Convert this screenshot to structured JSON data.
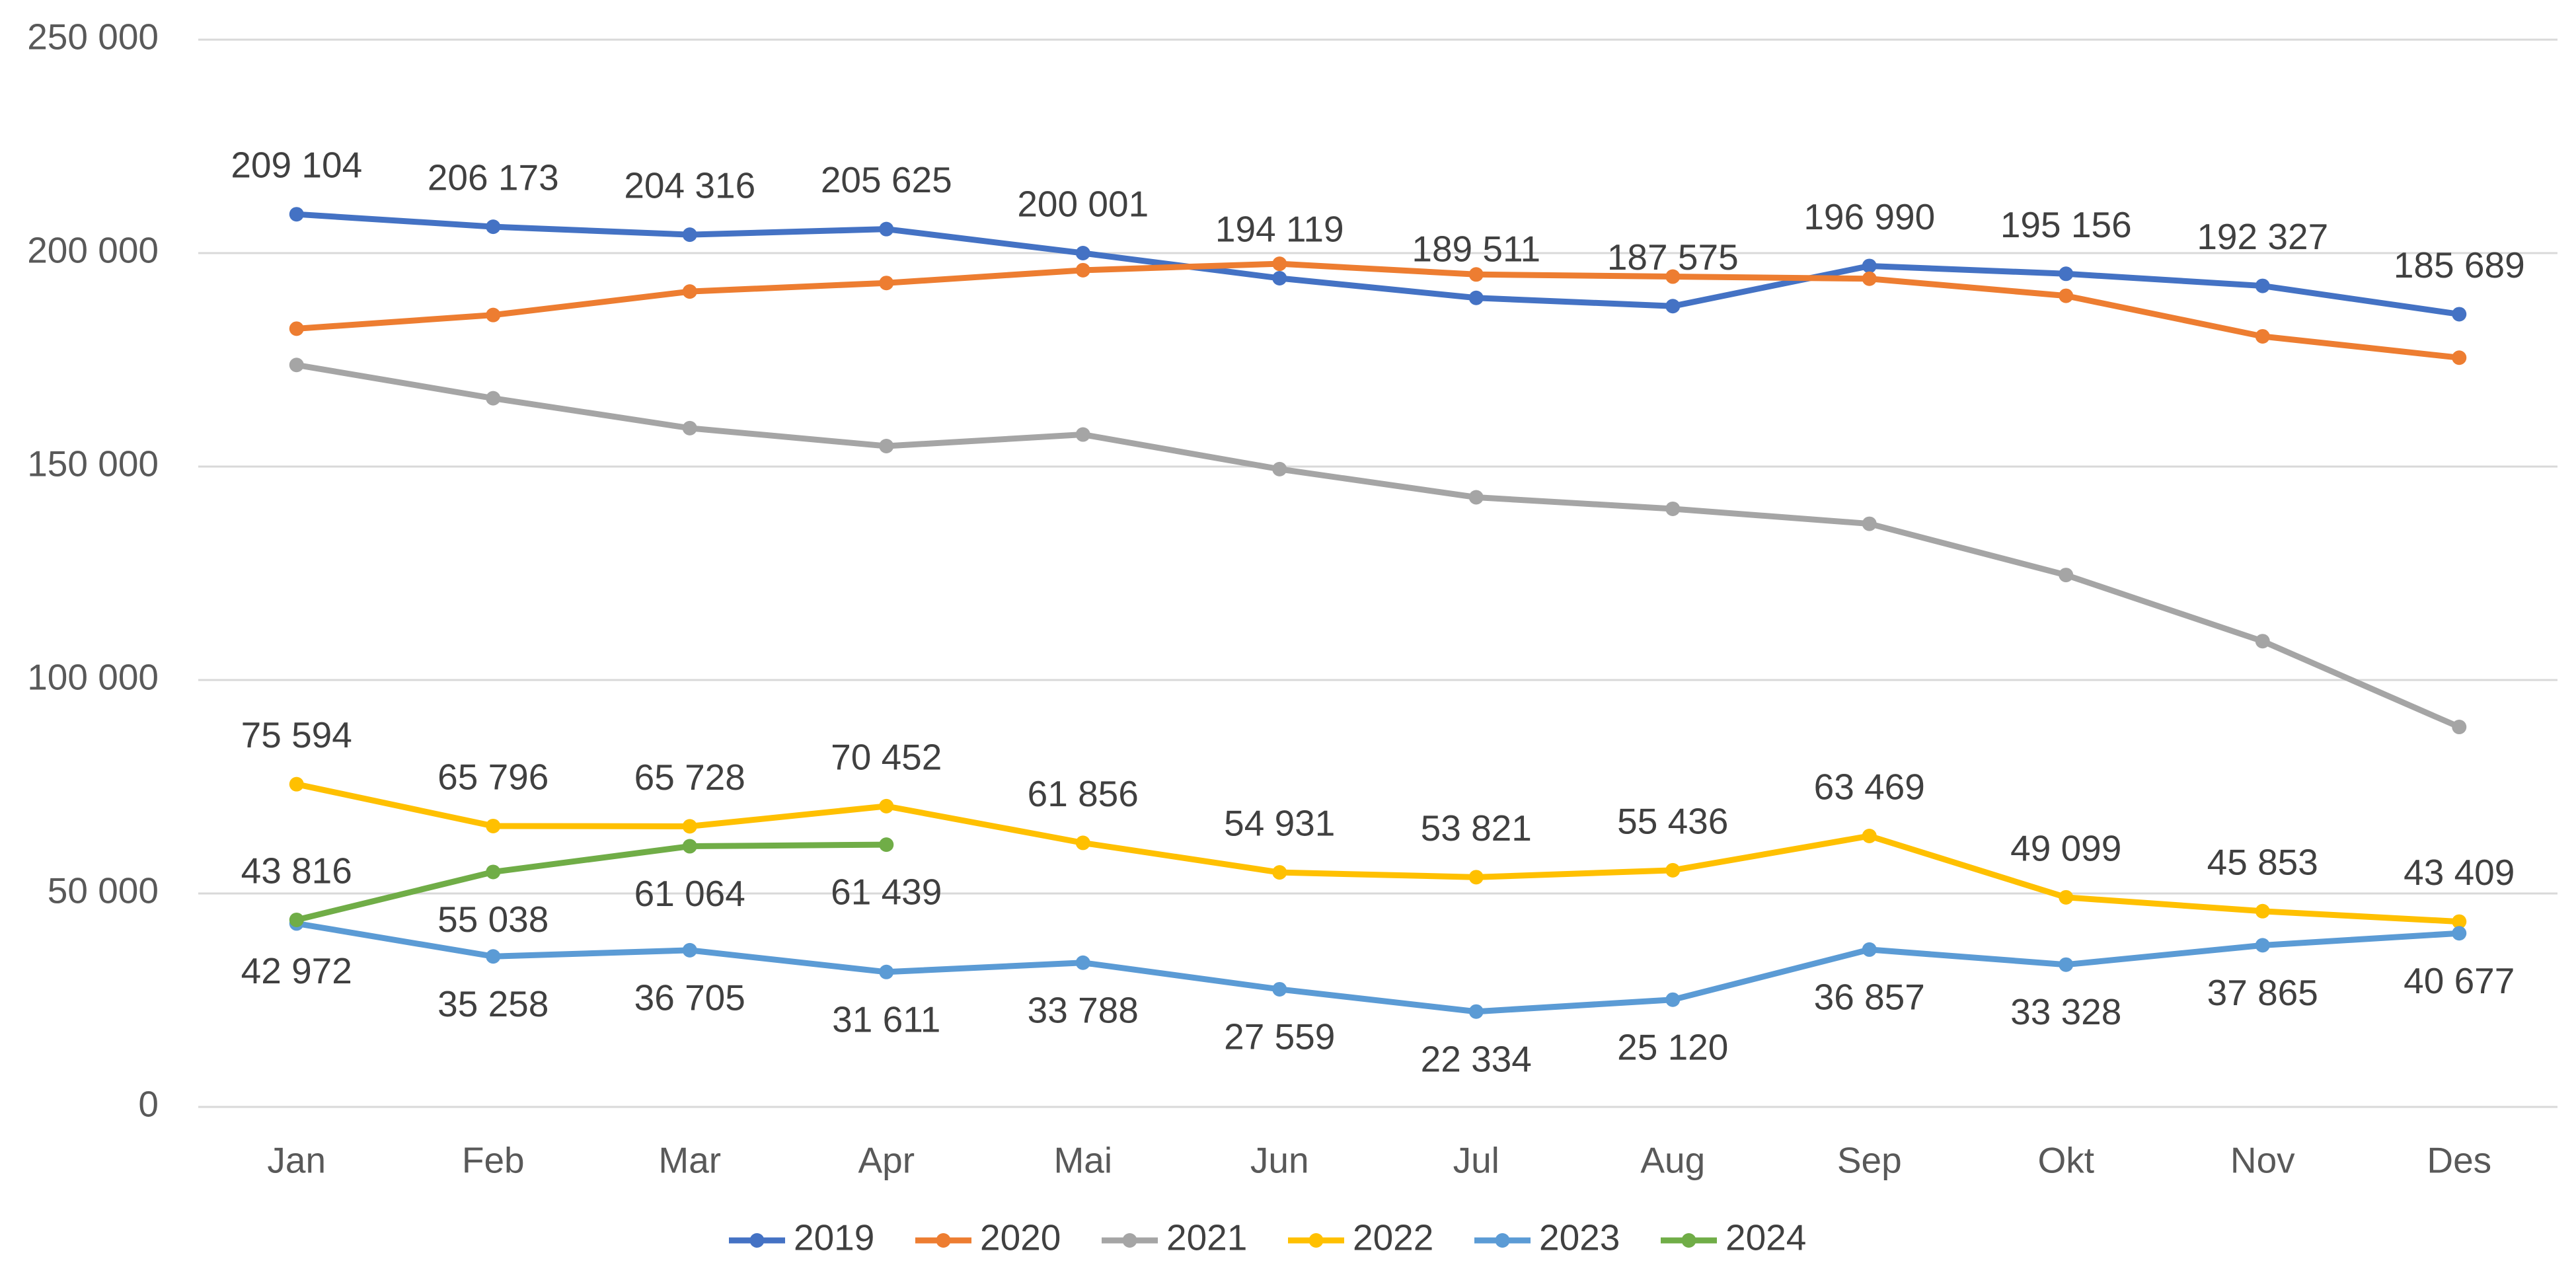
{
  "chart_data": {
    "type": "line",
    "categories": [
      "Jan",
      "Feb",
      "Mar",
      "Apr",
      "Mai",
      "Jun",
      "Jul",
      "Aug",
      "Sep",
      "Okt",
      "Nov",
      "Des"
    ],
    "ylim": [
      0,
      250000
    ],
    "yticks": [
      0,
      {
        "value": 50000,
        "label": "50 000"
      },
      {
        "value": 100000,
        "label": "100 000"
      },
      {
        "value": 150000,
        "label": "150 000"
      },
      {
        "value": 200000,
        "label": "200 000"
      },
      {
        "value": 250000,
        "label": "250 000"
      }
    ],
    "grid": true,
    "legend": "bottom",
    "series": [
      {
        "name": "2019",
        "color": "#4472c4",
        "values": [
          209104,
          206173,
          204316,
          205625,
          200001,
          194119,
          189511,
          187575,
          196990,
          195156,
          192327,
          185689
        ],
        "value_labels": [
          "209 104",
          "206 173",
          "204 316",
          "205 625",
          "200 001",
          "194 119",
          "189 511",
          "187 575",
          "196 990",
          "195 156",
          "192 327",
          "185 689"
        ]
      },
      {
        "name": "2020",
        "color": "#ed7d31",
        "values": [
          182300,
          185500,
          191000,
          193000,
          196000,
          197500,
          195000,
          194500,
          194000,
          190000,
          180500,
          175500
        ]
      },
      {
        "name": "2021",
        "color": "#a5a5a5",
        "values": [
          173800,
          166000,
          159000,
          154800,
          157500,
          149400,
          142800,
          140100,
          136600,
          124600,
          109100,
          89000
        ]
      },
      {
        "name": "2022",
        "color": "#ffc000",
        "values": [
          75594,
          65796,
          65728,
          70452,
          61856,
          54931,
          53821,
          55436,
          63469,
          49099,
          45853,
          43409
        ],
        "value_labels": [
          "75 594",
          "65 796",
          "65 728",
          "70 452",
          "61 856",
          "54 931",
          "53 821",
          "55 436",
          "63 469",
          "49 099",
          "45 853",
          "43 409"
        ]
      },
      {
        "name": "2023",
        "color": "#5b9bd5",
        "values": [
          42972,
          35258,
          36705,
          31611,
          33788,
          27559,
          22334,
          25120,
          36857,
          33328,
          37865,
          40677
        ],
        "value_labels": [
          "42 972",
          "35 258",
          "36 705",
          "31 611",
          "33 788",
          "27 559",
          "22 334",
          "25 120",
          "36 857",
          "33 328",
          "37 865",
          "40 677"
        ]
      },
      {
        "name": "2024",
        "color": "#70ad47",
        "values": [
          43816,
          55038,
          61064,
          61439,
          null,
          null,
          null,
          null,
          null,
          null,
          null,
          null
        ],
        "value_labels": [
          "43 816",
          "55 038",
          "61 064",
          "61 439",
          null,
          null,
          null,
          null,
          null,
          null,
          null,
          null
        ]
      }
    ]
  }
}
